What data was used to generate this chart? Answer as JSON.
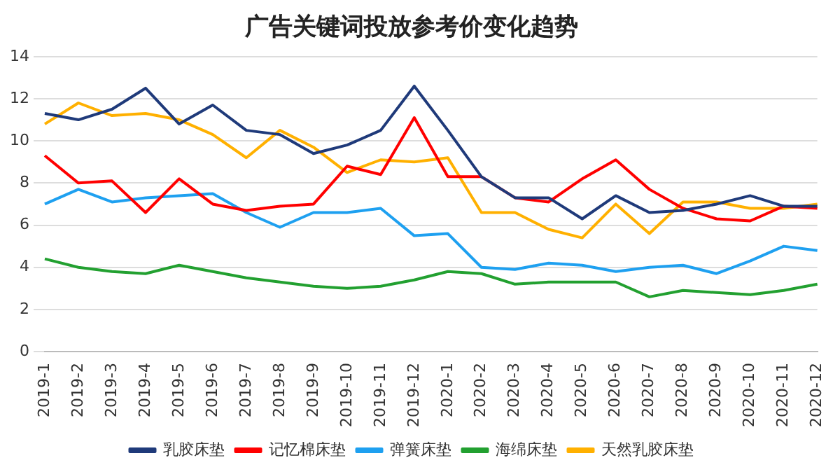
{
  "chart_data": {
    "type": "line",
    "title": "广告关键词投放参考价变化趋势",
    "categories": [
      "2019-1",
      "2019-2",
      "2019-3",
      "2019-4",
      "2019-5",
      "2019-6",
      "2019-7",
      "2019-8",
      "2019-9",
      "2019-10",
      "2019-11",
      "2019-12",
      "2020-1",
      "2020-2",
      "2020-3",
      "2020-4",
      "2020-5",
      "2020-6",
      "2020-7",
      "2020-8",
      "2020-9",
      "2020-10",
      "2020-11",
      "2020-12"
    ],
    "series": [
      {
        "name": "乳胶床垫",
        "color": "#1f3a7a",
        "values": [
          11.3,
          11.0,
          11.5,
          12.5,
          10.8,
          11.7,
          10.5,
          10.3,
          9.4,
          9.8,
          10.5,
          12.6,
          10.5,
          8.3,
          7.3,
          7.3,
          6.3,
          7.4,
          6.6,
          6.7,
          7.0,
          7.4,
          6.9,
          6.9
        ]
      },
      {
        "name": "记忆棉床垫",
        "color": "#ff0000",
        "values": [
          9.3,
          8.0,
          8.1,
          6.6,
          8.2,
          7.0,
          6.7,
          6.9,
          7.0,
          8.8,
          8.4,
          11.1,
          8.3,
          8.3,
          7.3,
          7.1,
          8.2,
          9.1,
          7.7,
          6.8,
          6.3,
          6.2,
          6.9,
          6.8
        ]
      },
      {
        "name": "弹簧床垫",
        "color": "#1ea0f0",
        "values": [
          7.0,
          7.7,
          7.1,
          7.3,
          7.4,
          7.5,
          6.6,
          5.9,
          6.6,
          6.6,
          6.8,
          5.5,
          5.6,
          4.0,
          3.9,
          4.2,
          4.1,
          3.8,
          4.0,
          4.1,
          3.7,
          4.3,
          5.0,
          4.8
        ]
      },
      {
        "name": "海绵床垫",
        "color": "#22a030",
        "values": [
          4.4,
          4.0,
          3.8,
          3.7,
          4.1,
          3.8,
          3.5,
          3.3,
          3.1,
          3.0,
          3.1,
          3.4,
          3.8,
          3.7,
          3.2,
          3.3,
          3.3,
          3.3,
          2.6,
          2.9,
          2.8,
          2.7,
          2.9,
          3.2
        ]
      },
      {
        "name": "天然乳胶床垫",
        "color": "#ffb000",
        "values": [
          10.8,
          11.8,
          11.2,
          11.3,
          11.0,
          10.3,
          9.2,
          10.5,
          9.7,
          8.5,
          9.1,
          9.0,
          9.2,
          6.6,
          6.6,
          5.8,
          5.4,
          7.0,
          5.6,
          7.1,
          7.1,
          6.8,
          6.8,
          7.0
        ]
      }
    ],
    "ylim": [
      0,
      14
    ],
    "yticks": [
      0,
      2,
      4,
      6,
      8,
      10,
      12,
      14
    ],
    "grid": "y",
    "legend": "bottom",
    "marker": "none",
    "line_style": "solid"
  }
}
